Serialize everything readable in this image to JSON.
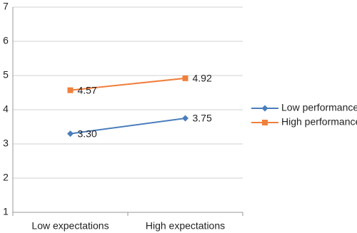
{
  "chart_data": {
    "type": "line",
    "categories": [
      "Low expectations",
      "High expectations"
    ],
    "series": [
      {
        "name": "Low performance",
        "color": "#4a7ebb",
        "marker": "diamond",
        "values": [
          3.3,
          3.75
        ],
        "value_labels": [
          "3.30",
          "3.75"
        ]
      },
      {
        "name": "High performance",
        "color": "#f07f3c",
        "marker": "square",
        "values": [
          4.57,
          4.92
        ],
        "value_labels": [
          "4.57",
          "4.92"
        ]
      }
    ],
    "ylim": [
      1,
      7
    ],
    "yticks": [
      1,
      2,
      3,
      4,
      5,
      6,
      7
    ],
    "grid": true,
    "legend": "right"
  }
}
